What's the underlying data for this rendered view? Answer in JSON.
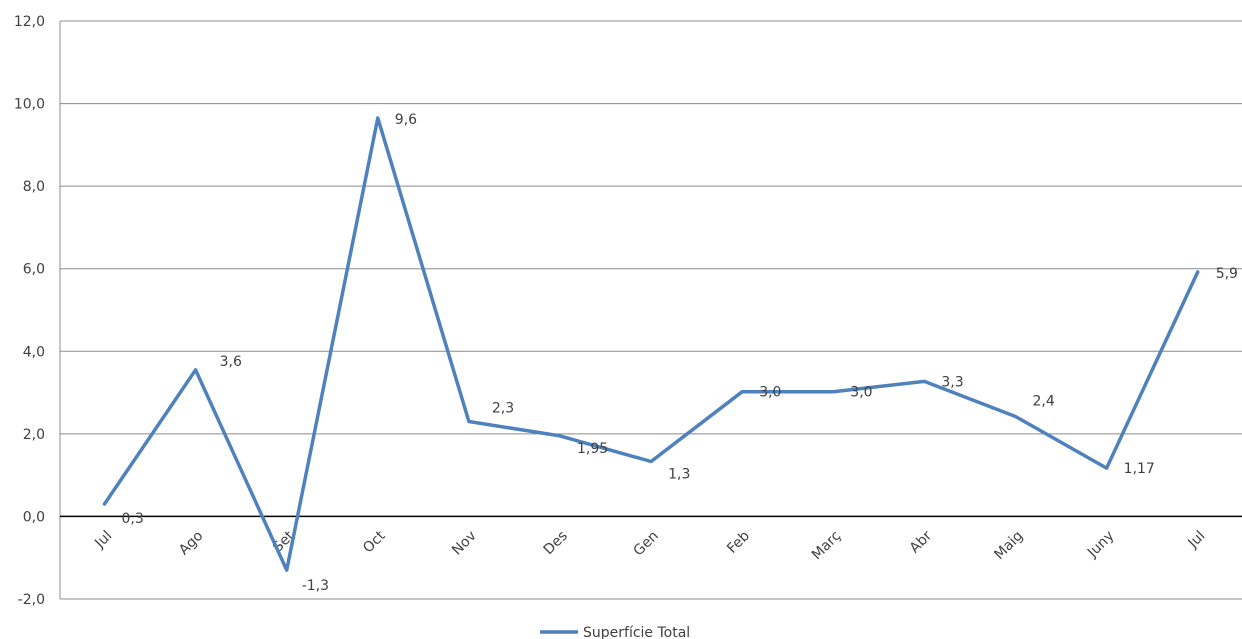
{
  "chart_data": {
    "type": "line",
    "title": "",
    "xlabel": "",
    "ylabel": "",
    "categories": [
      "Jul",
      "Ago",
      "Set",
      "Oct",
      "Nov",
      "Des",
      "Gen",
      "Feb",
      "Març",
      "Abr",
      "Maig",
      "Juny",
      "Jul"
    ],
    "series": [
      {
        "name": "Superfície Total",
        "color": "#4f81bd",
        "values": [
          0.3,
          3.55,
          -1.3,
          9.65,
          2.3,
          1.95,
          1.33,
          3.02,
          3.02,
          3.27,
          2.42,
          1.17,
          5.92
        ],
        "labels": [
          "0,3",
          "3,6",
          "-1,3",
          "9,6",
          "2,3",
          "1,95",
          "1,3",
          "3,0",
          "3,0",
          "3,3",
          "2,4",
          "1,17",
          "5,9"
        ]
      }
    ],
    "ylim": [
      -2,
      12
    ],
    "yticks": [
      -2,
      0,
      2,
      4,
      6,
      8,
      10,
      12
    ],
    "ytick_labels": [
      "-2,0",
      "0,0",
      "2,0",
      "4,0",
      "6,0",
      "8,0",
      "10,0",
      "12,0"
    ],
    "grid": true,
    "legend_position": "bottom"
  }
}
